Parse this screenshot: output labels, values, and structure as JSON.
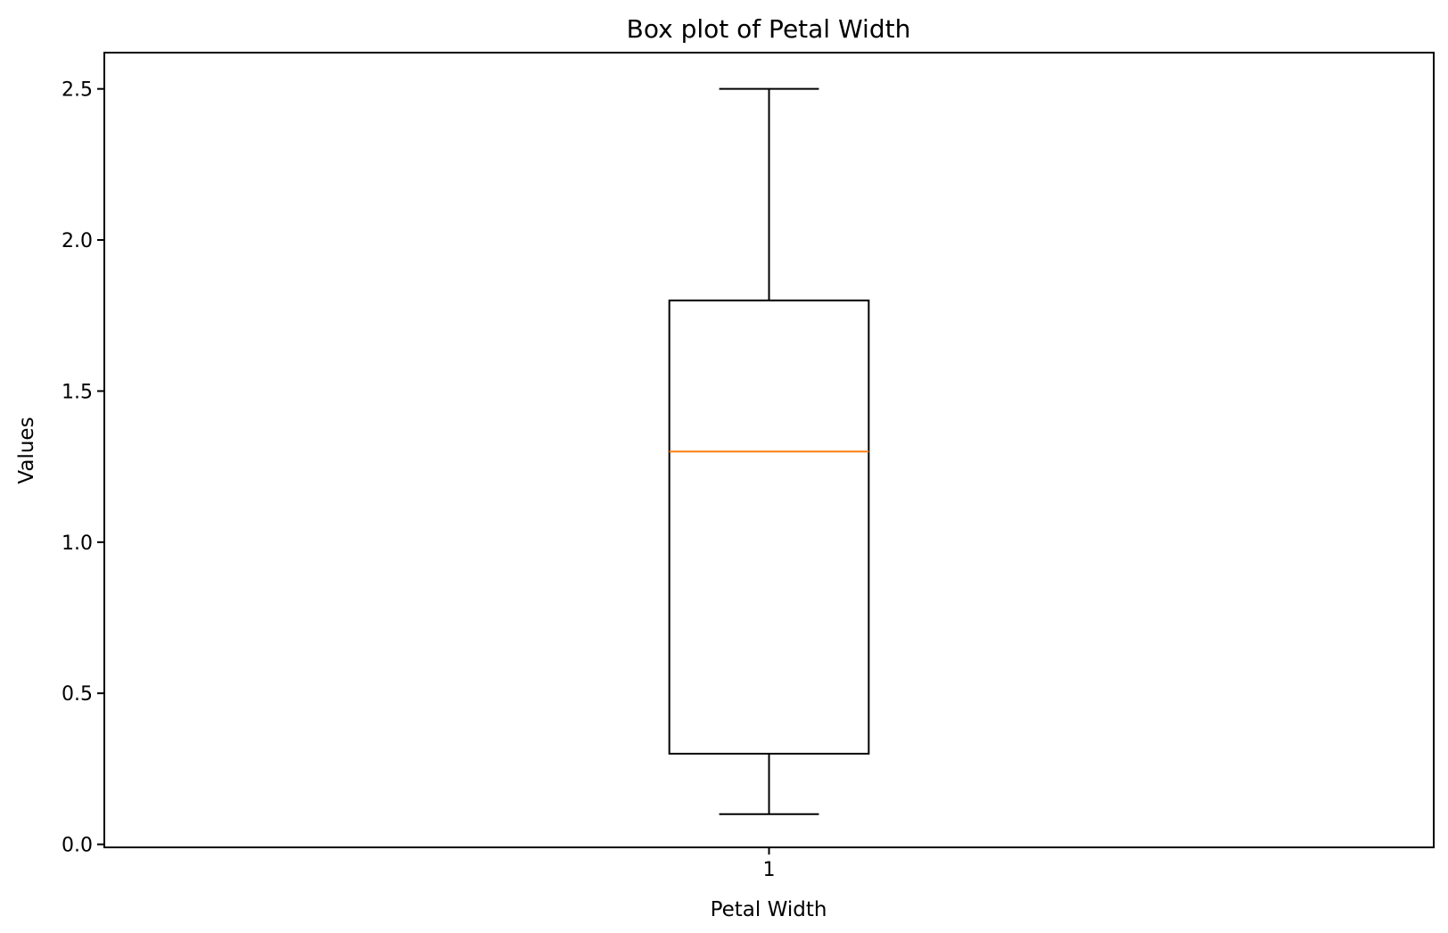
{
  "chart_data": {
    "type": "box",
    "title": "Box plot of Petal Width",
    "xlabel": "Petal Width",
    "ylabel": "Values",
    "categories": [
      "1"
    ],
    "boxes": [
      {
        "category": "1",
        "whisker_low": 0.1,
        "q1": 0.3,
        "median": 1.3,
        "q3": 1.8,
        "whisker_high": 2.5
      }
    ],
    "ylim": [
      -0.01,
      2.62
    ],
    "yticks": [
      0.0,
      0.5,
      1.0,
      1.5,
      2.0,
      2.5
    ],
    "ytick_labels": [
      "0.0",
      "0.5",
      "1.0",
      "1.5",
      "2.0",
      "2.5"
    ],
    "grid": false,
    "colors": {
      "box": "#000000",
      "median": "#ff7f0e"
    }
  }
}
